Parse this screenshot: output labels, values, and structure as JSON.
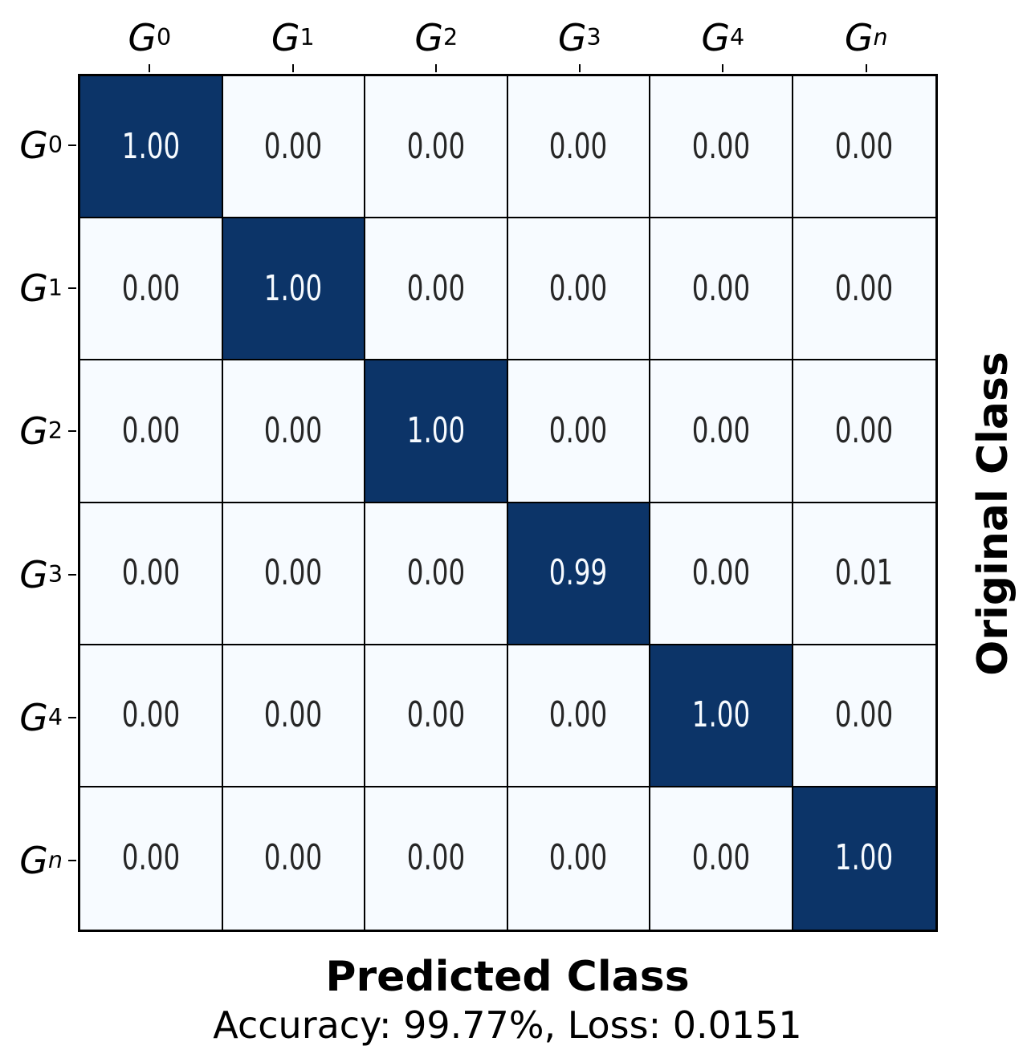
{
  "chart_data": {
    "type": "heatmap",
    "variant": "confusion-matrix",
    "title": "",
    "xlabel": "Predicted Class",
    "ylabel": "Original Class",
    "caption": "Accuracy: 99.77%, Loss: 0.0151",
    "accuracy": "99.77%",
    "loss": "0.0151",
    "classes": [
      {
        "base": "G",
        "sub": "0"
      },
      {
        "base": "G",
        "sub": "1"
      },
      {
        "base": "G",
        "sub": "2"
      },
      {
        "base": "G",
        "sub": "3"
      },
      {
        "base": "G",
        "sub": "4"
      },
      {
        "base": "G",
        "sub": "n"
      }
    ],
    "matrix": [
      [
        1.0,
        0.0,
        0.0,
        0.0,
        0.0,
        0.0
      ],
      [
        0.0,
        1.0,
        0.0,
        0.0,
        0.0,
        0.0
      ],
      [
        0.0,
        0.0,
        1.0,
        0.0,
        0.0,
        0.0
      ],
      [
        0.0,
        0.0,
        0.0,
        0.99,
        0.0,
        0.01
      ],
      [
        0.0,
        0.0,
        0.0,
        0.0,
        1.0,
        0.0
      ],
      [
        0.0,
        0.0,
        0.0,
        0.0,
        0.0,
        1.0
      ]
    ],
    "value_decimals": 2,
    "value_range": [
      0,
      1
    ],
    "colormap": "Blues",
    "colors": {
      "cell_high": "#0c3468",
      "cell_low": "#f7fbff",
      "text_on_high": "#f7fbff",
      "text_on_low": "#262626",
      "grid_line": "#000000",
      "axis_text": "#000000",
      "background": "#ffffff"
    },
    "grid": true,
    "legend": null,
    "axes": {
      "x_ticks_position": "top",
      "y_ticks_position": "left",
      "ylabel_position": "right"
    }
  }
}
